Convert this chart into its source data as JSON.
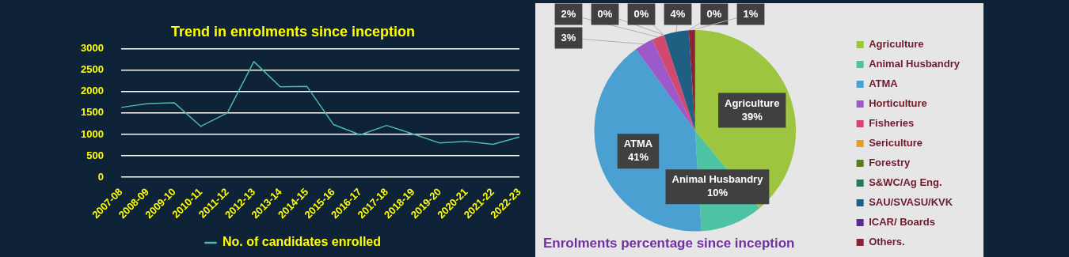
{
  "chart_data": [
    {
      "type": "line",
      "title": "Trend in enrolments since inception",
      "categories": [
        "2007-08",
        "2008-09",
        "2009-10",
        "2010-11",
        "2011-12",
        "2012-13",
        "2013-14",
        "2014-15",
        "2015-16",
        "2016-17",
        "2017-18",
        "2018-19",
        "2019-20",
        "2020-21",
        "2021-22",
        "2022-23"
      ],
      "series": [
        {
          "name": "No. of candidates enrolled",
          "color": "#4fb8a4",
          "values": [
            1630,
            1720,
            1740,
            1190,
            1500,
            2700,
            2110,
            2120,
            1230,
            990,
            1210,
            1010,
            800,
            840,
            770,
            940
          ]
        }
      ],
      "ylim": [
        0,
        3000
      ],
      "yticks": [
        0,
        500,
        1000,
        1500,
        2000,
        2500,
        3000
      ],
      "grid": "y",
      "legend": "bottom",
      "marker": "none"
    },
    {
      "type": "pie",
      "title": "Enrolments percentage since inception",
      "categories": [
        "Agriculture",
        "Animal Husbandry",
        "ATMA",
        "Horticulture",
        "Fisheries",
        "Sericulture",
        "Forestry",
        "S&WC/Ag Eng.",
        "SAU/SVASU/KVK",
        "ICAR/ Boards",
        "Others."
      ],
      "values": [
        39,
        10,
        41,
        3,
        2,
        0,
        0,
        0,
        4,
        0,
        1
      ],
      "colors": [
        "#9dc53f",
        "#4cc4a4",
        "#4ba0d2",
        "#9b59c9",
        "#d2486e",
        "#e89a2a",
        "#5a7a24",
        "#1f7a5c",
        "#1f5f82",
        "#5b2c8f",
        "#8a2238"
      ],
      "value_labels": [
        "Agriculture\n39%",
        "Animal Husbandry\n10%",
        "ATMA\n41%",
        "3%",
        "2%",
        "0%",
        "0%",
        null,
        "4%",
        "0%",
        "1%"
      ],
      "legend": "right"
    }
  ]
}
